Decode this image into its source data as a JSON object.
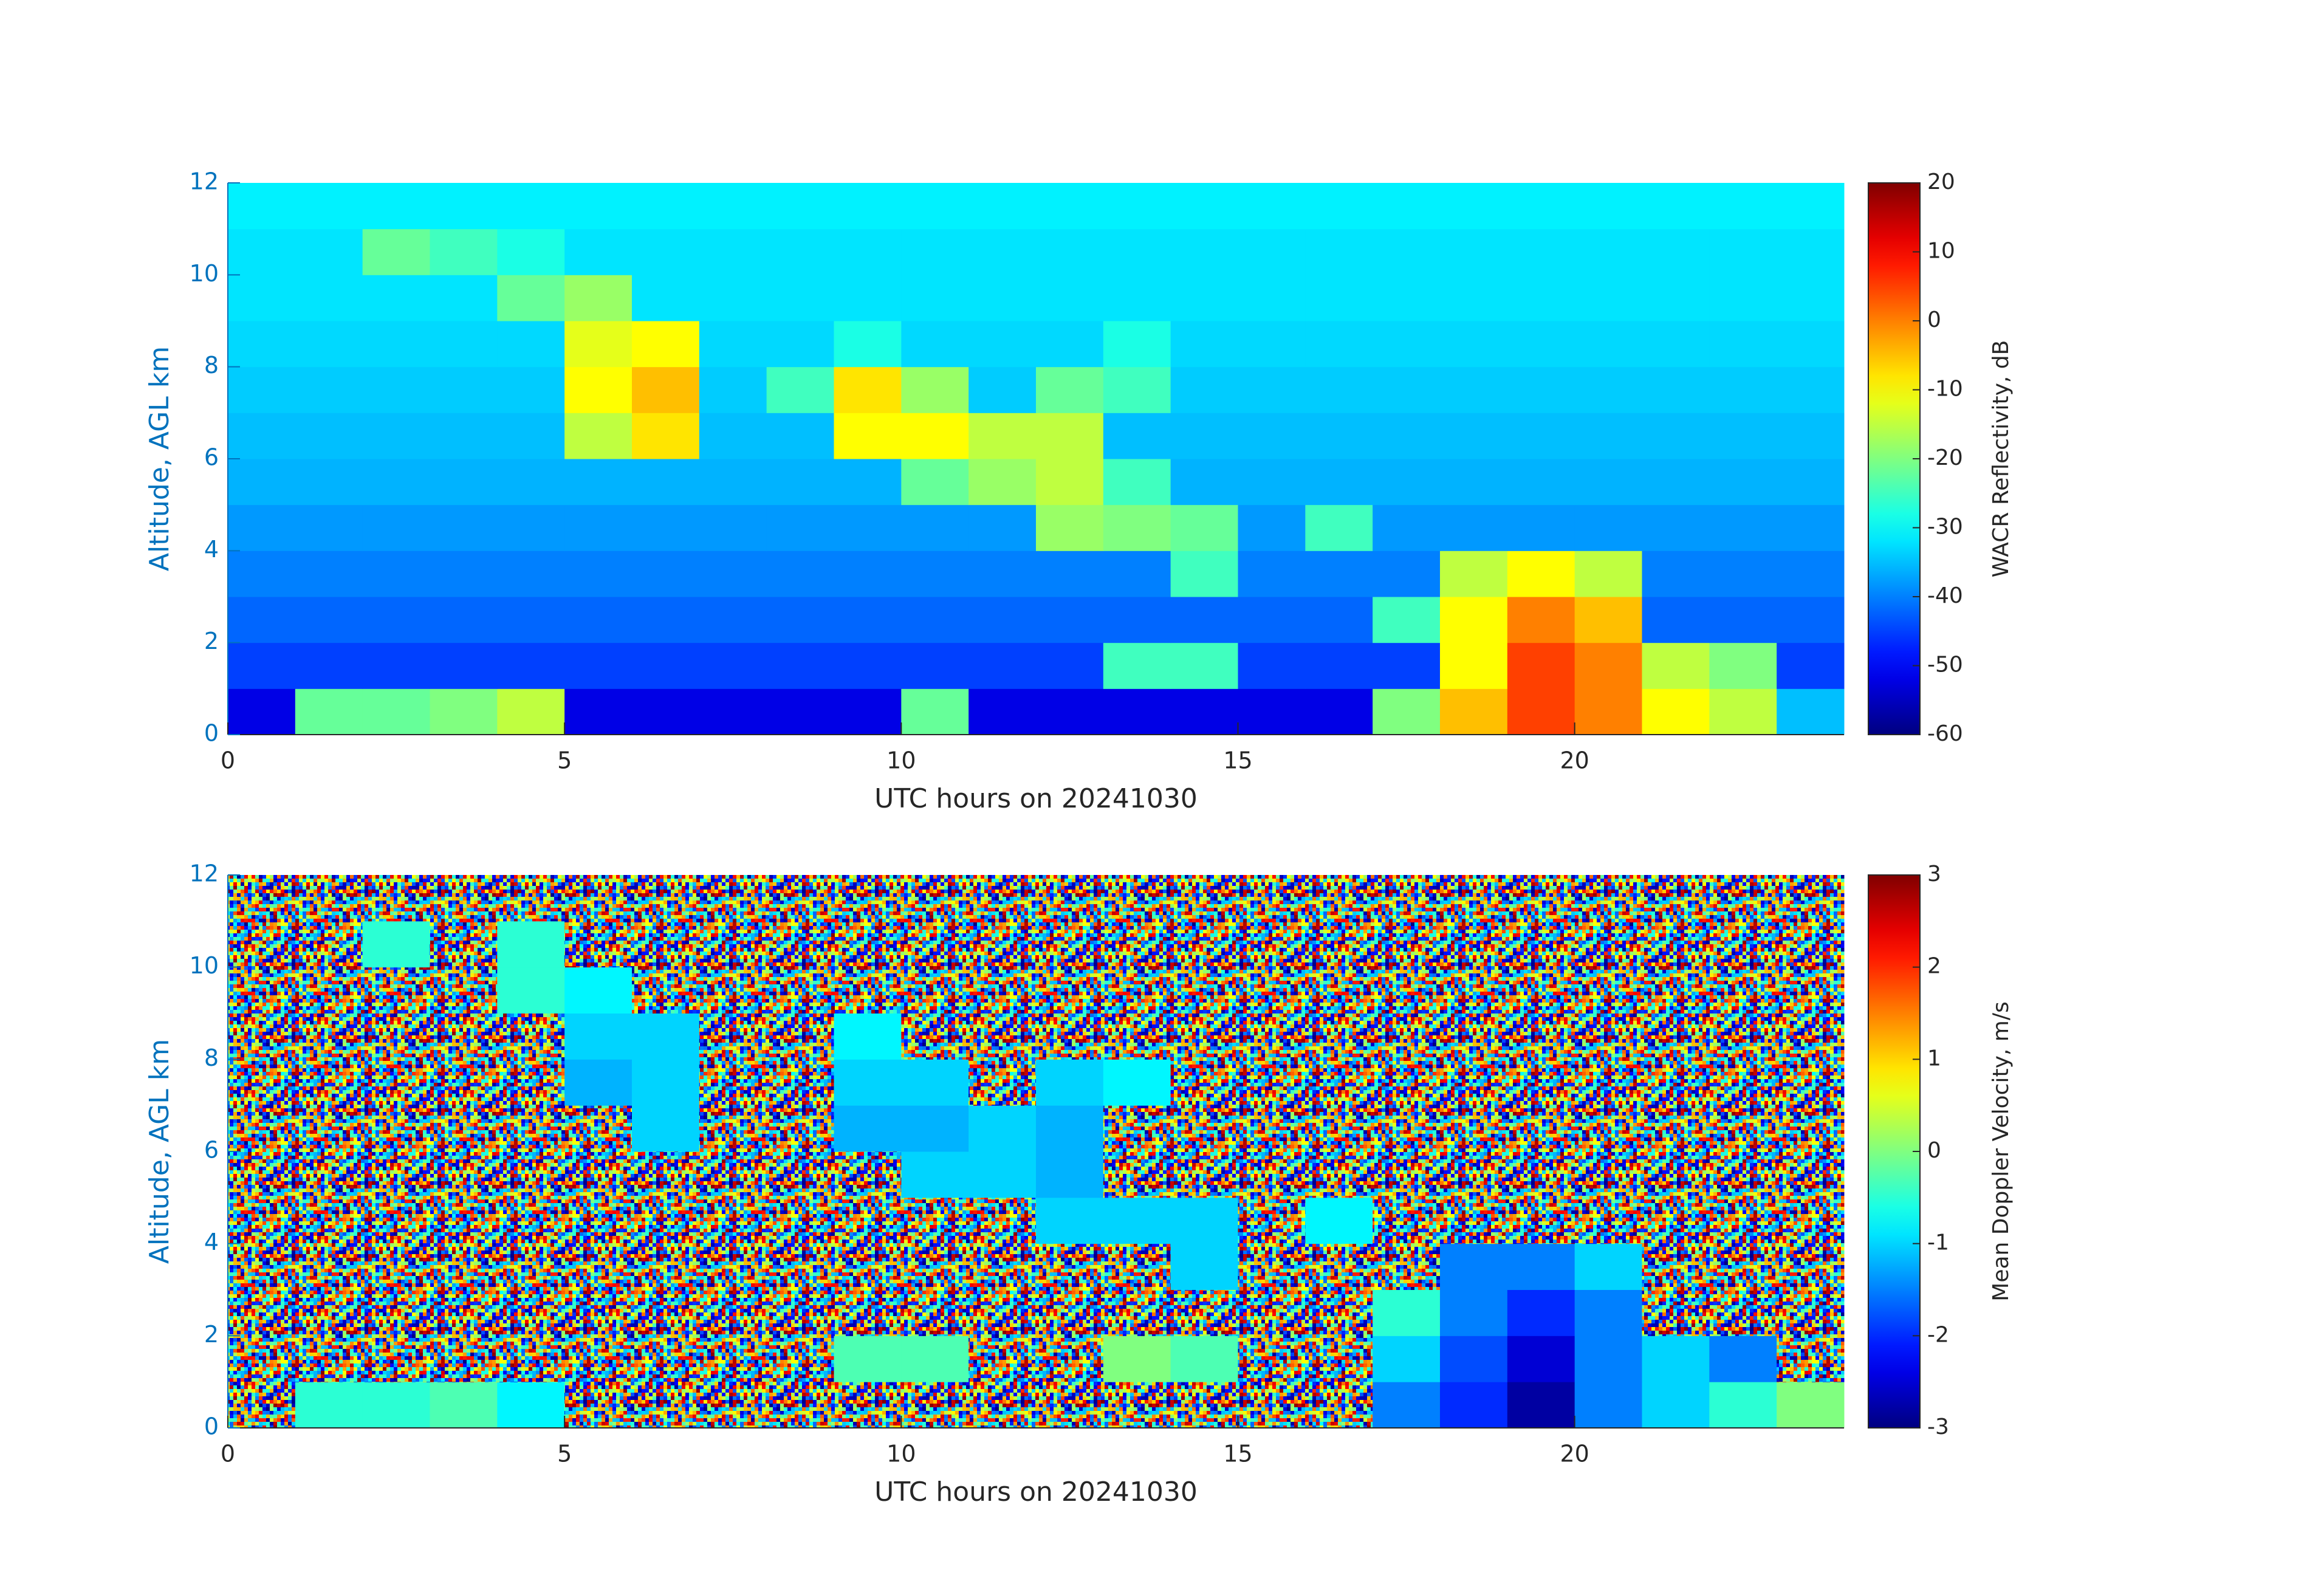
{
  "chart_data": [
    {
      "type": "heatmap",
      "colormap": "jet",
      "xlabel": "UTC hours on 20241030",
      "ylabel": "Altitude, AGL km",
      "colorbar": {
        "label": "WACR Reflectivity, dB",
        "lim": [
          -60,
          20
        ],
        "ticks": [
          -60,
          -50,
          -40,
          -30,
          -20,
          -10,
          0,
          10,
          20
        ]
      },
      "xlim": [
        0,
        24
      ],
      "ylim": [
        0,
        12
      ],
      "xticks": [
        0,
        5,
        10,
        15,
        20
      ],
      "yticks": [
        0,
        2,
        4,
        6,
        8,
        10,
        12
      ],
      "x": [
        0.5,
        1.5,
        2.5,
        3.5,
        4.5,
        5.5,
        6.5,
        7.5,
        8.5,
        9.5,
        10.5,
        11.5,
        12.5,
        13.5,
        14.5,
        15.5,
        16.5,
        17.5,
        18.5,
        19.5,
        20.5,
        21.5,
        22.5,
        23.5
      ],
      "y": [
        0.5,
        1.5,
        2.5,
        3.5,
        4.5,
        5.5,
        6.5,
        7.5,
        8.5,
        9.5,
        10.5,
        11.5
      ],
      "values": [
        [
          -52,
          -22,
          -22,
          -20,
          -15,
          -52,
          -52,
          -52,
          -52,
          -52,
          -22,
          -52,
          -52,
          -52,
          -52,
          -52,
          -52,
          -20,
          -5,
          5,
          0,
          -10,
          -15,
          -35
        ],
        [
          -45,
          -45,
          -45,
          -45,
          -45,
          -45,
          -45,
          -45,
          -45,
          -45,
          -45,
          -45,
          -45,
          -25,
          -25,
          -45,
          -45,
          -45,
          -10,
          5,
          0,
          -15,
          -20,
          -45
        ],
        [
          -42,
          -42,
          -42,
          -42,
          -42,
          -42,
          -42,
          -42,
          -42,
          -42,
          -42,
          -42,
          -42,
          -42,
          -42,
          -42,
          -42,
          -25,
          -10,
          0,
          -5,
          -42,
          -42,
          -42
        ],
        [
          -40,
          -40,
          -40,
          -40,
          -40,
          -40,
          -40,
          -40,
          -40,
          -40,
          -40,
          -40,
          -40,
          -40,
          -25,
          -40,
          -40,
          -40,
          -15,
          -10,
          -15,
          -40,
          -40,
          -40
        ],
        [
          -38,
          -38,
          -38,
          -38,
          -38,
          -38,
          -38,
          -38,
          -38,
          -38,
          -38,
          -38,
          -18,
          -20,
          -22,
          -38,
          -25,
          -38,
          -38,
          -38,
          -38,
          -38,
          -38,
          -38
        ],
        [
          -36,
          -36,
          -36,
          -36,
          -36,
          -36,
          -36,
          -36,
          -36,
          -36,
          -22,
          -18,
          -15,
          -25,
          -36,
          -36,
          -36,
          -36,
          -36,
          -36,
          -36,
          -36,
          -36,
          -36
        ],
        [
          -35,
          -35,
          -35,
          -35,
          -35,
          -15,
          -8,
          -35,
          -35,
          -10,
          -10,
          -15,
          -15,
          -35,
          -35,
          -35,
          -35,
          -35,
          -35,
          -35,
          -35,
          -35,
          -35,
          -35
        ],
        [
          -34,
          -34,
          -34,
          -34,
          -34,
          -10,
          -5,
          -34,
          -25,
          -8,
          -18,
          -34,
          -22,
          -25,
          -34,
          -34,
          -34,
          -34,
          -34,
          -34,
          -34,
          -34,
          -34,
          -34
        ],
        [
          -33,
          -33,
          -33,
          -33,
          -33,
          -12,
          -10,
          -33,
          -33,
          -28,
          -33,
          -33,
          -33,
          -28,
          -33,
          -33,
          -33,
          -33,
          -33,
          -33,
          -33,
          -33,
          -33,
          -33
        ],
        [
          -32,
          -32,
          -32,
          -32,
          -22,
          -18,
          -32,
          -32,
          -32,
          -32,
          -32,
          -32,
          -32,
          -32,
          -32,
          -32,
          -32,
          -32,
          -32,
          -32,
          -32,
          -32,
          -32,
          -32
        ],
        [
          -32,
          -32,
          -22,
          -25,
          -28,
          -32,
          -32,
          -32,
          -32,
          -32,
          -32,
          -32,
          -32,
          -32,
          -32,
          -32,
          -32,
          -32,
          -32,
          -32,
          -32,
          -32,
          -32,
          -32
        ],
        [
          -31,
          -31,
          -31,
          -31,
          -31,
          -31,
          -31,
          -31,
          -31,
          -31,
          -31,
          -31,
          -31,
          -31,
          -31,
          -31,
          -31,
          -31,
          -31,
          -31,
          -31,
          -31,
          -31,
          -31
        ]
      ]
    },
    {
      "type": "heatmap",
      "colormap": "jet",
      "xlabel": "UTC hours on 20241030",
      "ylabel": "Altitude, AGL km",
      "colorbar": {
        "label": "Mean Doppler Velocity, m/s",
        "lim": [
          -3,
          3
        ],
        "ticks": [
          -3,
          -2,
          -1,
          0,
          1,
          2,
          3
        ]
      },
      "xlim": [
        0,
        24
      ],
      "ylim": [
        0,
        12
      ],
      "xticks": [
        0,
        5,
        10,
        15,
        20
      ],
      "yticks": [
        0,
        2,
        4,
        6,
        8,
        10,
        12
      ],
      "x": [
        0.5,
        1.5,
        2.5,
        3.5,
        4.5,
        5.5,
        6.5,
        7.5,
        8.5,
        9.5,
        10.5,
        11.5,
        12.5,
        13.5,
        14.5,
        15.5,
        16.5,
        17.5,
        18.5,
        19.5,
        20.5,
        21.5,
        22.5,
        23.5
      ],
      "y": [
        0.5,
        1.5,
        2.5,
        3.5,
        4.5,
        5.5,
        6.5,
        7.5,
        8.5,
        9.5,
        10.5,
        11.5
      ],
      "values": [
        [
          null,
          -0.5,
          -0.5,
          -0.3,
          -0.8,
          null,
          null,
          null,
          null,
          null,
          null,
          null,
          null,
          null,
          null,
          null,
          null,
          -1.5,
          -2,
          -2.8,
          -1.5,
          -1,
          -0.5,
          0
        ],
        [
          null,
          null,
          null,
          null,
          null,
          null,
          null,
          null,
          null,
          -0.3,
          -0.3,
          null,
          null,
          0,
          -0.3,
          null,
          null,
          -1,
          -1.8,
          -2.5,
          -1.5,
          -1,
          -1.5,
          null
        ],
        [
          null,
          null,
          null,
          null,
          null,
          null,
          null,
          null,
          null,
          null,
          null,
          null,
          null,
          null,
          null,
          null,
          null,
          -0.5,
          -1.5,
          -2,
          -1.5,
          null,
          null,
          null
        ],
        [
          null,
          null,
          null,
          null,
          null,
          null,
          null,
          null,
          null,
          null,
          null,
          null,
          null,
          null,
          -1,
          null,
          null,
          null,
          -1.5,
          -1.5,
          -1,
          null,
          null,
          null
        ],
        [
          null,
          null,
          null,
          null,
          null,
          null,
          null,
          null,
          null,
          null,
          null,
          null,
          -1,
          -1,
          -1,
          null,
          -0.8,
          null,
          null,
          null,
          null,
          null,
          null,
          null
        ],
        [
          null,
          null,
          null,
          null,
          null,
          null,
          null,
          null,
          null,
          null,
          -1,
          -1,
          -1.2,
          null,
          null,
          null,
          null,
          null,
          null,
          null,
          null,
          null,
          null,
          null
        ],
        [
          null,
          null,
          null,
          null,
          null,
          null,
          -1,
          null,
          null,
          -1.2,
          -1.2,
          -1,
          -1.2,
          null,
          null,
          null,
          null,
          null,
          null,
          null,
          null,
          null,
          null,
          null
        ],
        [
          null,
          null,
          null,
          null,
          null,
          -1.2,
          -1,
          null,
          null,
          -1,
          -1,
          null,
          -1,
          -0.8,
          null,
          null,
          null,
          null,
          null,
          null,
          null,
          null,
          null,
          null
        ],
        [
          null,
          null,
          null,
          null,
          null,
          -1,
          -1,
          null,
          null,
          -0.8,
          null,
          null,
          null,
          null,
          null,
          null,
          null,
          null,
          null,
          null,
          null,
          null,
          null,
          null
        ],
        [
          null,
          null,
          null,
          null,
          -0.5,
          -0.8,
          null,
          null,
          null,
          null,
          null,
          null,
          null,
          null,
          null,
          null,
          null,
          null,
          null,
          null,
          null,
          null,
          null,
          null
        ],
        [
          null,
          null,
          -0.5,
          null,
          -0.5,
          null,
          null,
          null,
          null,
          null,
          null,
          null,
          null,
          null,
          null,
          null,
          null,
          null,
          null,
          null,
          null,
          null,
          null,
          null
        ],
        [
          null,
          null,
          null,
          null,
          null,
          null,
          null,
          null,
          null,
          null,
          null,
          null,
          null,
          null,
          null,
          null,
          null,
          null,
          null,
          null,
          null,
          null,
          null,
          null
        ]
      ]
    }
  ]
}
